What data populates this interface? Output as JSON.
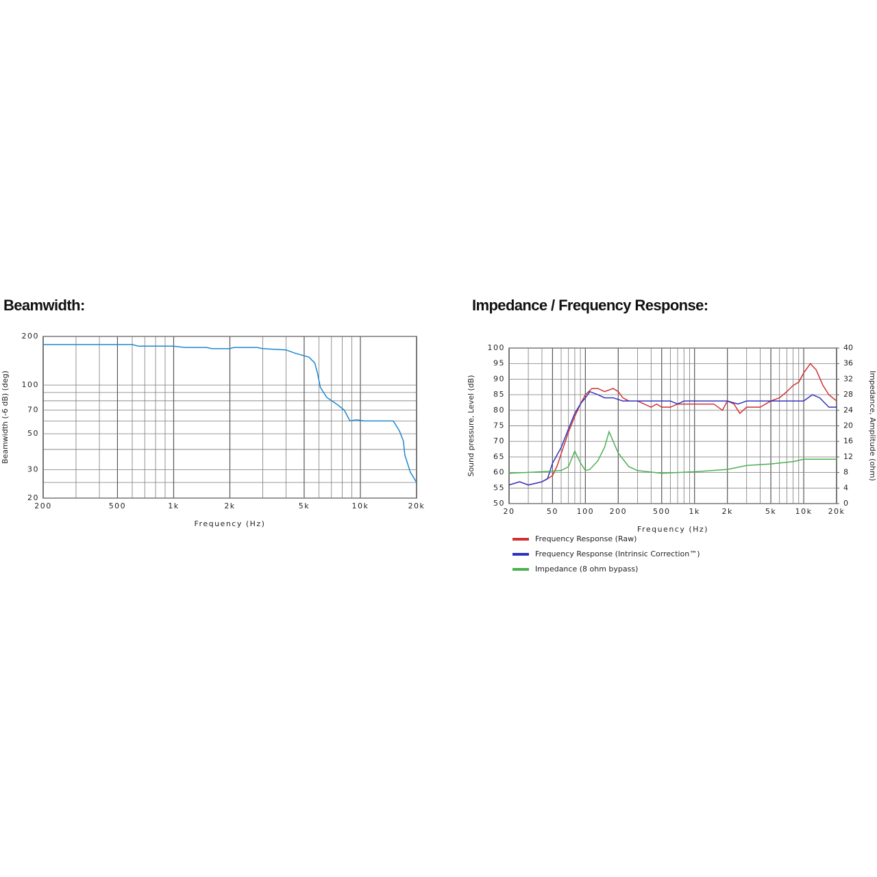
{
  "chart_data": [
    {
      "type": "line",
      "title": "Beamwidth:",
      "xlabel": "Frequency (Hz)",
      "ylabel": "Beamwidth (-6 dB) (deg)",
      "xscale": "log",
      "yscale": "log",
      "xlim": [
        200,
        20000
      ],
      "ylim": [
        20,
        200
      ],
      "xticks": [
        200,
        500,
        {
          "value": 1000,
          "label": "1k"
        },
        {
          "value": 2000,
          "label": "2k"
        },
        {
          "value": 5000,
          "label": "5k"
        },
        {
          "value": 10000,
          "label": "10k"
        },
        {
          "value": 20000,
          "label": "20k"
        }
      ],
      "xminor": [
        300,
        400,
        600,
        700,
        800,
        900,
        3000,
        4000,
        6000,
        7000,
        8000,
        9000
      ],
      "yticks": [
        20,
        30,
        50,
        70,
        100,
        200
      ],
      "yminor": [
        25,
        40,
        60,
        80,
        90
      ],
      "grid": true,
      "series": [
        {
          "color": "#1a86d0",
          "x": [
            200,
            600,
            650,
            1000,
            1150,
            1500,
            1600,
            2000,
            2100,
            2800,
            3000,
            4000,
            4500,
            5300,
            5700,
            5900,
            6100,
            6600,
            7500,
            8200,
            8800,
            9500,
            10500,
            15000,
            16200,
            17000,
            17300,
            18500,
            20000
          ],
          "values": [
            178,
            178,
            174,
            174,
            171,
            171,
            168,
            168,
            171,
            171,
            168,
            165,
            157,
            149,
            137,
            118,
            97,
            84,
            76,
            70,
            60,
            61,
            60,
            60,
            52,
            45,
            37,
            29,
            25
          ]
        }
      ]
    },
    {
      "type": "line",
      "title": "Impedance / Frequency Response:",
      "xlabel": "Frequency (Hz)",
      "ylabel": "Sound pressure, Level (dB)",
      "y2label": "Impedance, Amplitude (ohm)",
      "xscale": "log",
      "yscale": "linear",
      "xlim": [
        20,
        20000
      ],
      "ylim": [
        50,
        100
      ],
      "y2lim": [
        0,
        40
      ],
      "xticks": [
        20,
        50,
        100,
        200,
        500,
        {
          "value": 1000,
          "label": "1k"
        },
        {
          "value": 2000,
          "label": "2k"
        },
        {
          "value": 5000,
          "label": "5k"
        },
        {
          "value": 10000,
          "label": "10k"
        },
        {
          "value": 20000,
          "label": "20k"
        }
      ],
      "xminor": [
        30,
        40,
        60,
        70,
        80,
        90,
        300,
        400,
        600,
        700,
        800,
        900,
        3000,
        4000,
        6000,
        7000,
        8000,
        9000
      ],
      "yticks": [
        50,
        55,
        60,
        65,
        70,
        75,
        80,
        85,
        90,
        95,
        100
      ],
      "y2ticks": [
        0,
        4,
        8,
        12,
        16,
        20,
        24,
        28,
        32,
        36,
        40
      ],
      "grid": true,
      "legend": "bottom-left",
      "series": [
        {
          "name": "Frequency Response (Raw)",
          "color": "#d03030",
          "x": [
            20,
            25,
            30,
            40,
            45,
            50,
            55,
            60,
            70,
            80,
            90,
            100,
            115,
            130,
            150,
            180,
            200,
            220,
            250,
            300,
            400,
            450,
            500,
            600,
            700,
            800,
            900,
            1000,
            1200,
            1500,
            1800,
            2000,
            2300,
            2600,
            3000,
            3500,
            4000,
            5000,
            6000,
            7000,
            8000,
            9000,
            10000,
            11500,
            13000,
            15000,
            17000,
            20000
          ],
          "values": [
            56,
            57,
            56,
            57,
            58,
            59,
            62,
            66,
            73,
            78,
            82,
            85,
            87,
            87,
            86,
            87,
            86,
            84,
            83,
            83,
            81,
            82,
            81,
            81,
            82,
            82,
            82,
            82,
            82,
            82,
            80,
            83,
            82,
            79,
            81,
            81,
            81,
            83,
            84,
            86,
            88,
            89,
            92,
            95,
            93,
            88,
            85,
            83
          ]
        },
        {
          "name": "Frequency Response (Intrinsic Correction™)",
          "color": "#3030c0",
          "x": [
            20,
            25,
            30,
            40,
            45,
            50,
            60,
            70,
            80,
            90,
            100,
            110,
            130,
            150,
            180,
            220,
            250,
            300,
            400,
            500,
            600,
            700,
            800,
            1000,
            1500,
            2000,
            2500,
            3000,
            5000,
            6000,
            8000,
            10000,
            12000,
            14000,
            17000,
            20000
          ],
          "values": [
            56,
            57,
            56,
            57,
            58,
            63,
            68,
            74,
            79,
            82,
            84,
            86,
            85,
            84,
            84,
            83,
            83,
            83,
            83,
            83,
            83,
            82,
            83,
            83,
            83,
            83,
            82,
            83,
            83,
            83,
            83,
            83,
            85,
            84,
            81,
            81
          ]
        },
        {
          "name": "Impedance (8 ohm bypass)",
          "color": "#4caf50",
          "axis": "y2",
          "x": [
            20,
            40,
            60,
            70,
            80,
            90,
            100,
            110,
            130,
            150,
            165,
            180,
            200,
            250,
            300,
            500,
            1000,
            2000,
            3000,
            5000,
            8000,
            10000,
            20000
          ],
          "values": [
            7.8,
            8.2,
            8.5,
            9.5,
            13.5,
            10.5,
            8.5,
            8.8,
            11,
            14.5,
            18.5,
            16,
            13,
            9.5,
            8.5,
            7.8,
            8.2,
            8.8,
            9.8,
            10.2,
            10.8,
            11.4,
            11.4
          ]
        }
      ]
    }
  ]
}
